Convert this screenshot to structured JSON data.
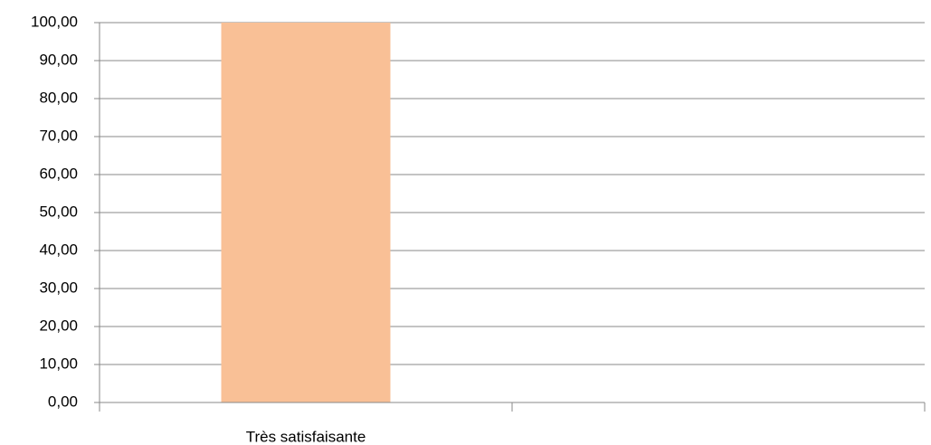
{
  "chart_data": {
    "type": "bar",
    "categories": [
      "Très satisfaisante",
      null
    ],
    "values": [
      100,
      null
    ],
    "color": "#f9c096",
    "ylim": [
      0,
      100
    ],
    "yticks": [
      {
        "value": 0,
        "label": "0,00"
      },
      {
        "value": 10,
        "label": "10,00"
      },
      {
        "value": 20,
        "label": "20,00"
      },
      {
        "value": 30,
        "label": "30,00"
      },
      {
        "value": 40,
        "label": "40,00"
      },
      {
        "value": 50,
        "label": "50,00"
      },
      {
        "value": 60,
        "label": "60,00"
      },
      {
        "value": 70,
        "label": "70,00"
      },
      {
        "value": 80,
        "label": "80,00"
      },
      {
        "value": 90,
        "label": "90,00"
      },
      {
        "value": 100,
        "label": "100,00"
      }
    ],
    "grid": true
  }
}
